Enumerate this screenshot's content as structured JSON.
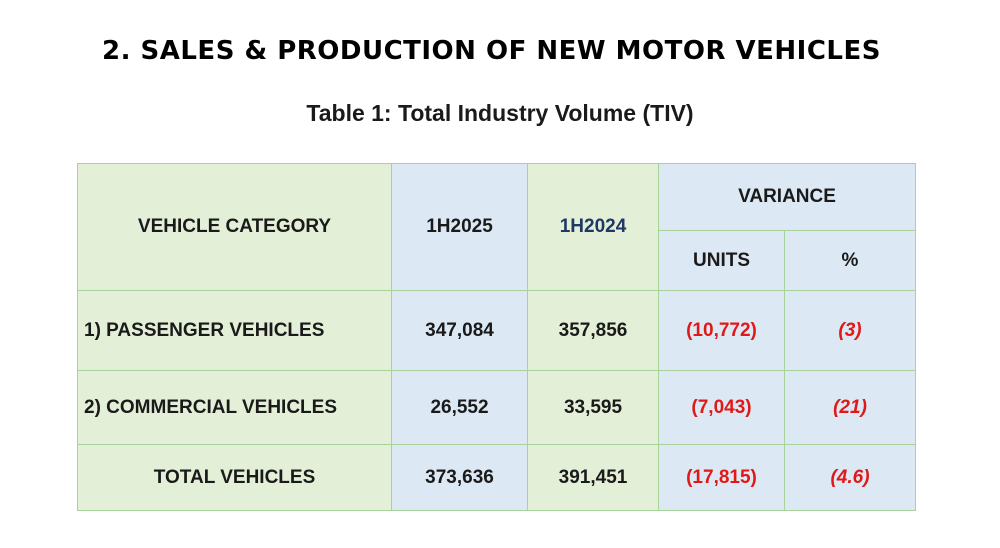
{
  "heading": "2. SALES & PRODUCTION OF NEW MOTOR VEHICLES",
  "caption": "Table 1: Total Industry Volume (TIV)",
  "table": {
    "headers": {
      "category": "VEHICLE CATEGORY",
      "period_current": "1H2025",
      "period_previous": "1H2024",
      "variance": "VARIANCE",
      "units": "UNITS",
      "percent": "%"
    },
    "rows": [
      {
        "category": "1) PASSENGER VEHICLES",
        "current": "347,084",
        "previous": "357,856",
        "units": "(10,772)",
        "percent": "(3)"
      },
      {
        "category": "2) COMMERCIAL VEHICLES",
        "current": "26,552",
        "previous": "33,595",
        "units": "(7,043)",
        "percent": "(21)"
      },
      {
        "category": "TOTAL VEHICLES",
        "current": "373,636",
        "previous": "391,451",
        "units": "(17,815)",
        "percent": "(4.6)"
      }
    ]
  },
  "colors": {
    "green_cell": "#e3f0d7",
    "blue_cell": "#dce9f5",
    "border": "#a6d39a",
    "negative": "#e01818",
    "navy_header": "#1f3864"
  }
}
